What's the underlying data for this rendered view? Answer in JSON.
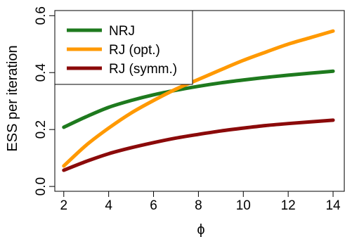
{
  "chart_data": {
    "type": "line",
    "title": "",
    "xlabel": "ϕ",
    "ylabel": "ESS per iteration",
    "xlim": [
      2,
      14
    ],
    "ylim": [
      0.0,
      0.6
    ],
    "xticks": [
      2,
      4,
      6,
      8,
      10,
      12,
      14
    ],
    "yticks": [
      0.0,
      0.2,
      0.4,
      0.6
    ],
    "xtick_labels": [
      "2",
      "4",
      "6",
      "8",
      "10",
      "12",
      "14"
    ],
    "ytick_labels": [
      "0.0",
      "0.2",
      "0.4",
      "0.6"
    ],
    "grid": false,
    "legend_position": "top-left",
    "x": [
      2,
      3,
      4,
      5,
      6,
      7,
      8,
      9,
      10,
      11,
      12,
      13,
      14
    ],
    "series": [
      {
        "name": "NRJ",
        "color": "#1e7a1e",
        "values": [
          0.208,
          0.245,
          0.278,
          0.302,
          0.322,
          0.338,
          0.352,
          0.364,
          0.374,
          0.383,
          0.391,
          0.398,
          0.405
        ]
      },
      {
        "name": "RJ (opt.)",
        "color": "#ff9900",
        "values": [
          0.072,
          0.145,
          0.205,
          0.258,
          0.302,
          0.342,
          0.376,
          0.41,
          0.443,
          0.472,
          0.5,
          0.523,
          0.546
        ]
      },
      {
        "name": "RJ (symm.)",
        "color": "#8b0a0a",
        "values": [
          0.057,
          0.088,
          0.115,
          0.136,
          0.154,
          0.17,
          0.183,
          0.195,
          0.205,
          0.214,
          0.221,
          0.227,
          0.233
        ]
      }
    ]
  }
}
